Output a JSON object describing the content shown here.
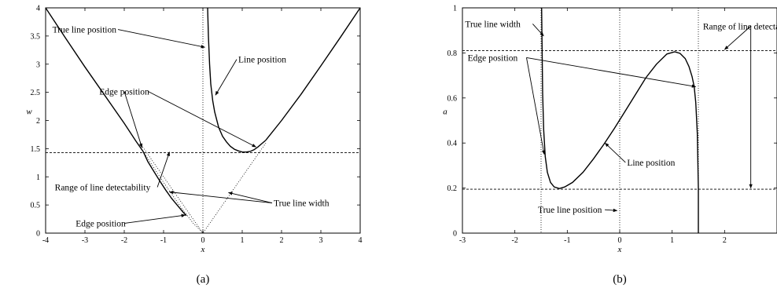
{
  "chart_data": [
    {
      "type": "line",
      "subcaption": "(a)",
      "xlabel": "x",
      "ylabel": "w",
      "xlim": [
        -4,
        4
      ],
      "ylim": [
        0,
        4
      ],
      "xticks": [
        "-4",
        "-3",
        "-2",
        "-1",
        "0",
        "1",
        "2",
        "3",
        "4"
      ],
      "yticks": [
        "0",
        "0.5",
        "1",
        "1.5",
        "2",
        "2.5",
        "3",
        "3.5",
        "4"
      ],
      "hline": 1.43,
      "vline": 0,
      "series": [
        {
          "role": "edge-position",
          "style": "solid",
          "x": [
            -4,
            -3.5,
            -3,
            -2.5,
            -2,
            -1.7,
            -1.52,
            -1.4,
            -1.25,
            -1.1,
            -0.95,
            -0.8,
            -0.62,
            -0.5,
            -0.42
          ],
          "y": [
            4,
            3.47,
            2.95,
            2.45,
            1.95,
            1.63,
            1.45,
            1.27,
            1.1,
            0.93,
            0.77,
            0.62,
            0.47,
            0.37,
            0.31
          ]
        },
        {
          "role": "edge-position",
          "style": "solid",
          "x": [
            1.6,
            2.0,
            2.5,
            3.0,
            3.5,
            4.0
          ],
          "y": [
            1.65,
            2.0,
            2.47,
            2.97,
            3.48,
            4.0
          ]
        },
        {
          "role": "line-position",
          "style": "solid",
          "x": [
            0.12,
            0.14,
            0.17,
            0.2,
            0.25,
            0.3,
            0.4,
            0.5,
            0.6,
            0.7,
            0.8,
            0.9,
            1.0,
            1.1,
            1.2,
            1.3,
            1.4,
            1.5,
            1.6
          ],
          "y": [
            4.0,
            3.5,
            3.0,
            2.65,
            2.35,
            2.15,
            1.88,
            1.72,
            1.62,
            1.54,
            1.49,
            1.46,
            1.44,
            1.44,
            1.45,
            1.48,
            1.53,
            1.59,
            1.65
          ]
        },
        {
          "role": "true-line-width",
          "style": "dotted",
          "x": [
            -1.6,
            0,
            1.6
          ],
          "y": [
            1.6,
            0,
            1.6
          ]
        },
        {
          "role": "true-line-width",
          "style": "dotted",
          "x": [
            -1.52,
            -1.0,
            -0.55,
            -0.25,
            0
          ],
          "y": [
            1.45,
            0.9,
            0.45,
            0.18,
            0
          ]
        }
      ],
      "annotations": [
        {
          "text": "True line position",
          "tx": -2.2,
          "ty": 3.56,
          "anchor": "end",
          "arrows": [
            [
              0.05,
              3.3
            ]
          ]
        },
        {
          "text": "Line position",
          "tx": 0.9,
          "ty": 3.03,
          "anchor": "start",
          "arrows": [
            [
              0.32,
              2.45
            ]
          ]
        },
        {
          "text": "Edge position",
          "tx": -2.0,
          "ty": 2.46,
          "anchor": "middle",
          "arrows": [
            [
              -1.55,
              1.52
            ],
            [
              1.35,
              1.53
            ]
          ]
        },
        {
          "text": "Range of line detectability",
          "tx": -2.55,
          "ty": 0.76,
          "anchor": "middle",
          "arrows": [
            [
              -0.85,
              1.44
            ]
          ]
        },
        {
          "text": "True line width",
          "tx": 1.8,
          "ty": 0.48,
          "anchor": "start",
          "arrows": [
            [
              -0.85,
              0.73
            ],
            [
              0.65,
              0.72
            ]
          ]
        },
        {
          "text": "Edge position",
          "tx": -2.6,
          "ty": 0.12,
          "anchor": "middle",
          "arrows": [
            [
              -0.45,
              0.32
            ]
          ]
        }
      ]
    },
    {
      "type": "line",
      "subcaption": "(b)",
      "xlabel": "x",
      "ylabel": "a",
      "xlim": [
        -3,
        3
      ],
      "ylim": [
        0,
        1
      ],
      "xticks": [
        "-3",
        "-2",
        "-1",
        "0",
        "1",
        "2"
      ],
      "yticks": [
        "0",
        "0.2",
        "0.4",
        "0.6",
        "0.8",
        "1"
      ],
      "hlines": [
        0.81,
        0.195
      ],
      "vlines": [
        -1.5,
        0,
        1.5
      ],
      "series": [
        {
          "role": "line-position",
          "style": "solid",
          "x": [
            -1.49,
            -1.47,
            -1.45,
            -1.42,
            -1.38,
            -1.32,
            -1.25,
            -1.15,
            -1.05,
            -0.9,
            -0.7,
            -0.5,
            -0.3,
            -0.1,
            0.1,
            0.3,
            0.5,
            0.7,
            0.9,
            1.05,
            1.15,
            1.25,
            1.32,
            1.38,
            1.42,
            1.45,
            1.48,
            1.5,
            1.5
          ],
          "y": [
            1.0,
            0.62,
            0.46,
            0.34,
            0.27,
            0.225,
            0.205,
            0.198,
            0.205,
            0.225,
            0.27,
            0.33,
            0.395,
            0.465,
            0.54,
            0.615,
            0.69,
            0.75,
            0.795,
            0.805,
            0.798,
            0.775,
            0.74,
            0.695,
            0.65,
            0.58,
            0.44,
            0.2,
            0.0
          ]
        }
      ],
      "annotations": [
        {
          "text": "True line width",
          "tx": -2.95,
          "ty": 0.915,
          "anchor": "start",
          "arrows": [
            [
              -1.45,
              0.875
            ]
          ]
        },
        {
          "text": "Range of line detectability",
          "tx": 2.5,
          "ty": 0.905,
          "anchor": "middle",
          "arrows": [
            [
              2.0,
              0.815
            ],
            [
              2.5,
              0.2
            ]
          ]
        },
        {
          "text": "Edge position",
          "tx": -2.9,
          "ty": 0.765,
          "anchor": "start",
          "arrows": [
            [
              -1.44,
              0.35
            ],
            [
              1.45,
              0.65
            ]
          ]
        },
        {
          "text": "Line position",
          "tx": 0.14,
          "ty": 0.3,
          "anchor": "start",
          "arrows": [
            [
              -0.28,
              0.4
            ]
          ]
        },
        {
          "text": "True line position",
          "tx": -0.95,
          "ty": 0.09,
          "anchor": "middle",
          "arrows": [
            [
              -0.05,
              0.1
            ]
          ]
        }
      ]
    }
  ]
}
